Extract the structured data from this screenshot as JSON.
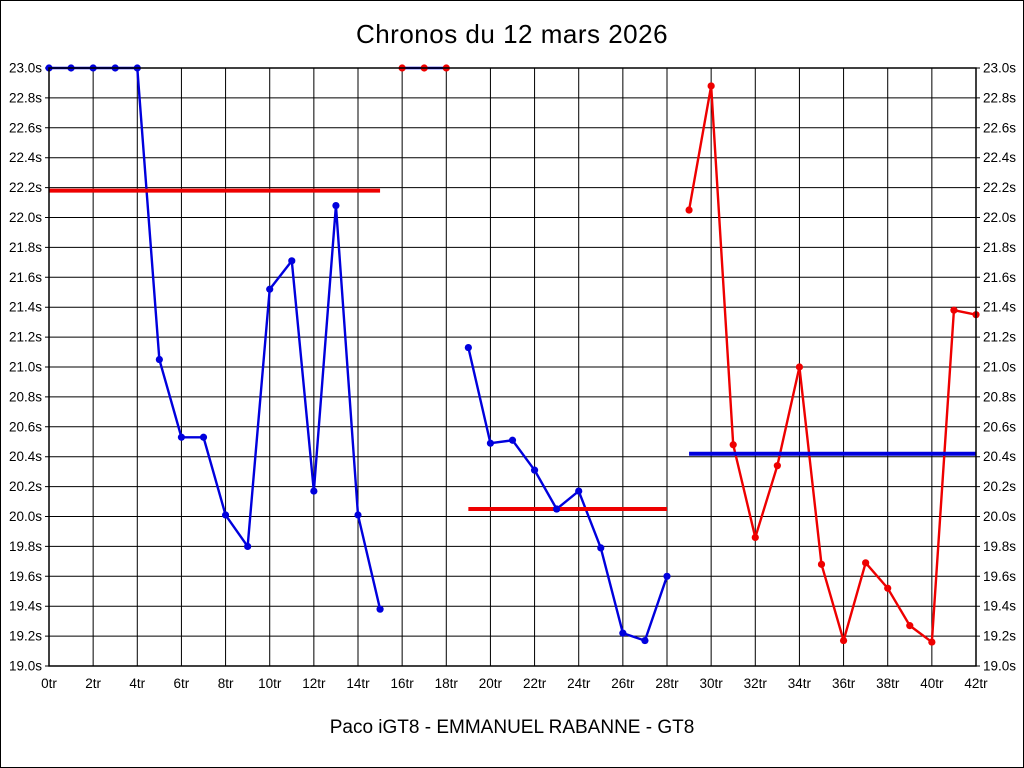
{
  "title": "Chronos du 12 mars 2026",
  "caption": "Paco iGT8 - EMMANUEL RABANNE - GT8",
  "colors": {
    "blue": "#0000dd",
    "red": "#ee0000",
    "grid": "#000000",
    "background": "#ffffff"
  },
  "chart_data": {
    "type": "line",
    "title": "Chronos du 12 mars 2026",
    "subtitle": "Paco iGT8 - EMMANUEL RABANNE - GT8",
    "x_unit": "tr",
    "y_unit": "s",
    "xlim": [
      0,
      42
    ],
    "ylim": [
      19.0,
      23.0
    ],
    "x_tick_step": 2,
    "y_tick_step": 0.2,
    "grid": true,
    "legend": "none",
    "x_tick_labels": [
      "0tr",
      "2tr",
      "4tr",
      "6tr",
      "8tr",
      "10tr",
      "12tr",
      "14tr",
      "16tr",
      "18tr",
      "20tr",
      "22tr",
      "24tr",
      "26tr",
      "28tr",
      "30tr",
      "32tr",
      "34tr",
      "36tr",
      "38tr",
      "40tr",
      "42tr"
    ],
    "y_tick_labels": [
      "23.0s",
      "22.8s",
      "22.6s",
      "22.4s",
      "22.2s",
      "22.0s",
      "21.8s",
      "21.6s",
      "21.4s",
      "21.2s",
      "21.0s",
      "20.8s",
      "20.6s",
      "20.4s",
      "20.2s",
      "20.0s",
      "19.8s",
      "19.6s",
      "19.4s",
      "19.2s",
      "19.0s"
    ],
    "series": [
      {
        "name": "stint-1-blue",
        "line_color": "blue",
        "marker_color": "blue",
        "laps": [
          0,
          1,
          2,
          3,
          4,
          5,
          6,
          7,
          8,
          9,
          10,
          11,
          12,
          13,
          14,
          15
        ],
        "values": [
          23.0,
          23.0,
          23.0,
          23.0,
          23.0,
          21.05,
          20.53,
          20.53,
          20.01,
          19.8,
          21.52,
          21.71,
          20.17,
          22.08,
          20.01,
          19.38
        ]
      },
      {
        "name": "pit-laps",
        "line_color": "blue",
        "marker_color": "red",
        "laps": [
          16,
          17,
          18
        ],
        "values": [
          23.0,
          23.0,
          23.0
        ]
      },
      {
        "name": "stint-2-blue",
        "line_color": "blue",
        "marker_color": "blue",
        "laps": [
          19,
          20,
          21,
          22,
          23,
          24,
          25,
          26,
          27,
          28
        ],
        "values": [
          21.13,
          20.49,
          20.51,
          20.31,
          20.05,
          20.17,
          19.79,
          19.22,
          19.17,
          19.6
        ]
      },
      {
        "name": "stint-3-red",
        "line_color": "red",
        "marker_color": "red",
        "laps": [
          29,
          30,
          31,
          32,
          33,
          34,
          35,
          36,
          37,
          38,
          39,
          40,
          41,
          42
        ],
        "values": [
          22.05,
          22.88,
          20.48,
          19.86,
          20.34,
          21.0,
          19.68,
          19.17,
          19.69,
          19.52,
          19.27,
          19.16,
          21.38,
          21.35
        ]
      }
    ],
    "reference_lines": [
      {
        "name": "stint-1-average",
        "color": "red",
        "value": 22.18,
        "from_lap": 0,
        "to_lap": 15
      },
      {
        "name": "stint-2-average",
        "color": "red",
        "value": 20.05,
        "from_lap": 19,
        "to_lap": 28
      },
      {
        "name": "stint-3-average",
        "color": "blue",
        "value": 20.42,
        "from_lap": 29,
        "to_lap": 42
      }
    ]
  }
}
